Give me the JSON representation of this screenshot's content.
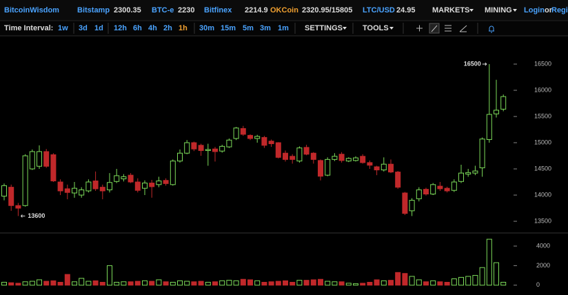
{
  "header": {
    "brand": "BitcoinWisdom",
    "tickers": [
      {
        "name": "Bitstamp",
        "price": "2300.35",
        "color": "#4aa3ff"
      },
      {
        "name": "BTC-e",
        "price": "2230",
        "color": "#4aa3ff"
      },
      {
        "name": "Bitfinex",
        "price": "2214.9",
        "color": "#4aa3ff"
      },
      {
        "name": "OKCoin",
        "price": "2320.95/15805",
        "color": "#f0a030"
      },
      {
        "name": "LTC/USD",
        "price": "24.95",
        "color": "#4aa3ff"
      }
    ],
    "menus": [
      "MARKETS",
      "MINING"
    ],
    "login": "Login",
    "or": "or",
    "register": "Regi"
  },
  "toolbar": {
    "label": "Time Interval:",
    "intervals": [
      "1w",
      "3d",
      "1d",
      "12h",
      "6h",
      "4h",
      "2h",
      "1h",
      "30m",
      "15m",
      "5m",
      "3m",
      "1m"
    ],
    "active_interval": "1h",
    "settings": "SETTINGS",
    "tools": "TOOLS"
  },
  "chart_data": {
    "type": "candlestick",
    "up_color": "#7ddc5a",
    "down_color": "#c0282a",
    "open": [
      13980,
      14150,
      13800,
      13800,
      14500,
      14550,
      14830,
      14770,
      14250,
      14120,
      14040,
      14000,
      14080,
      14270,
      14150,
      14100,
      14260,
      14310,
      14380,
      14250,
      14130,
      14230,
      14200,
      14280,
      14200,
      14650,
      14800,
      15000,
      14950,
      14850,
      14880,
      14840,
      14920,
      15080,
      15270,
      15140,
      15080,
      15100,
      15030,
      15000,
      14800,
      14740,
      14650,
      14910,
      14800,
      14660,
      14380,
      14680,
      14780,
      14650,
      14660,
      14740,
      14620,
      14540,
      14480,
      14590,
      14440,
      14040,
      13700,
      13930,
      14110,
      14020,
      14170,
      14130,
      14090,
      14260,
      14400,
      14420,
      14520,
      15060,
      15550,
      15640
    ],
    "high": [
      14220,
      14200,
      13850,
      14780,
      14870,
      14950,
      14880,
      14800,
      14300,
      14200,
      14250,
      14150,
      14300,
      14450,
      14200,
      14420,
      14500,
      14400,
      14420,
      14320,
      14280,
      14290,
      14350,
      14320,
      14680,
      14870,
      15050,
      15020,
      14980,
      14980,
      14920,
      14960,
      15080,
      15300,
      15320,
      15160,
      15150,
      15130,
      15060,
      15010,
      14850,
      14780,
      14930,
      14960,
      14820,
      14680,
      14720,
      14800,
      14820,
      14720,
      14740,
      14780,
      14660,
      14560,
      14720,
      14680,
      14460,
      14060,
      13940,
      14150,
      14140,
      14230,
      14250,
      14160,
      14300,
      14580,
      14500,
      14560,
      15100,
      16500,
      16200,
      15920
    ],
    "low": [
      13900,
      13700,
      13600,
      13780,
      14480,
      14500,
      14520,
      14250,
      14000,
      13920,
      13950,
      13950,
      14050,
      14080,
      13920,
      14050,
      14230,
      14260,
      14230,
      14050,
      14000,
      13950,
      14150,
      14180,
      14180,
      14620,
      14780,
      14840,
      14750,
      14560,
      14640,
      14810,
      14900,
      15050,
      15130,
      15050,
      15000,
      14900,
      14920,
      14700,
      14640,
      14600,
      14620,
      14760,
      14600,
      14280,
      14360,
      14650,
      14620,
      14630,
      14640,
      14600,
      14500,
      14380,
      14450,
      14420,
      14120,
      13620,
      13600,
      13880,
      13990,
      14000,
      14080,
      14050,
      14060,
      14230,
      14350,
      14380,
      14350,
      15000,
      15480,
      15600
    ],
    "close": [
      14180,
      13800,
      13750,
      14750,
      14830,
      14830,
      14550,
      14270,
      14080,
      14050,
      14130,
      14100,
      14250,
      14120,
      14080,
      14240,
      14370,
      14350,
      14250,
      14090,
      14230,
      14160,
      14270,
      14220,
      14650,
      14800,
      15000,
      14880,
      14850,
      14870,
      14830,
      14930,
      15050,
      15280,
      15160,
      15080,
      15120,
      14950,
      14980,
      14720,
      14680,
      14680,
      14900,
      14780,
      14680,
      14360,
      14680,
      14740,
      14660,
      14700,
      14710,
      14620,
      14570,
      14480,
      14590,
      14440,
      14150,
      13650,
      13900,
      14100,
      14020,
      14200,
      14120,
      14080,
      14250,
      14420,
      14430,
      14460,
      15070,
      15540,
      15620,
      15880
    ],
    "volume": [
      300,
      250,
      200,
      350,
      400,
      550,
      400,
      450,
      300,
      1100,
      350,
      700,
      400,
      450,
      300,
      2000,
      300,
      350,
      350,
      400,
      450,
      400,
      550,
      350,
      300,
      450,
      400,
      350,
      400,
      300,
      350,
      450,
      500,
      450,
      600,
      550,
      450,
      300,
      350,
      400,
      450,
      300,
      500,
      500,
      550,
      600,
      400,
      350,
      350,
      200,
      150,
      200,
      300,
      550,
      450,
      500,
      1300,
      1200,
      900,
      550,
      350,
      450,
      350,
      300,
      650,
      800,
      900,
      1000,
      1800,
      4700,
      2300,
      300
    ],
    "ylim": [
      13290,
      17000
    ],
    "yticks": [
      13500,
      14000,
      14500,
      15000,
      15500,
      16000,
      16500
    ],
    "volume_ylim": [
      -300,
      5200
    ],
    "volume_ticks": [
      0,
      2000,
      4000
    ],
    "max_marker": 16500,
    "min_marker": 13600
  }
}
